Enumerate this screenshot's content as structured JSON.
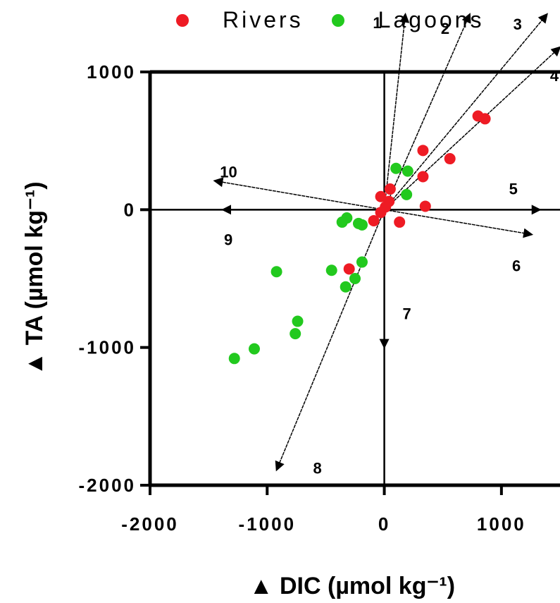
{
  "chart_data": {
    "type": "scatter",
    "xlabel": "DIC (µmol kg⁻¹)",
    "ylabel": "TA (µmol kg⁻¹)",
    "xlim": [
      -2000,
      1500
    ],
    "ylim": [
      -2000,
      1000
    ],
    "x_ticks": [
      "-2000",
      "-1000",
      "0",
      "1000"
    ],
    "y_ticks": [
      "1000",
      "0",
      "-1000",
      "-2000"
    ],
    "colors": {
      "Rivers": "#ee1b24",
      "Lagoons": "#22c91e"
    },
    "series": [
      {
        "name": "Rivers",
        "color": "#ee1b24",
        "points": [
          {
            "x": 800,
            "y": 680
          },
          {
            "x": 860,
            "y": 660
          },
          {
            "x": 330,
            "y": 430
          },
          {
            "x": 560,
            "y": 370
          },
          {
            "x": 330,
            "y": 240
          },
          {
            "x": 350,
            "y": 25
          },
          {
            "x": 50,
            "y": 150
          },
          {
            "x": -30,
            "y": 95
          },
          {
            "x": 40,
            "y": 60
          },
          {
            "x": 10,
            "y": 20
          },
          {
            "x": -30,
            "y": -20
          },
          {
            "x": -90,
            "y": -80
          },
          {
            "x": 130,
            "y": -90
          },
          {
            "x": -300,
            "y": -430
          }
        ]
      },
      {
        "name": "Lagoons",
        "color": "#22c91e",
        "points": [
          {
            "x": 100,
            "y": 300
          },
          {
            "x": 200,
            "y": 280
          },
          {
            "x": 190,
            "y": 110
          },
          {
            "x": -320,
            "y": -60
          },
          {
            "x": -360,
            "y": -90
          },
          {
            "x": -220,
            "y": -100
          },
          {
            "x": -190,
            "y": -110
          },
          {
            "x": -190,
            "y": -380
          },
          {
            "x": -450,
            "y": -440
          },
          {
            "x": -920,
            "y": -450
          },
          {
            "x": -250,
            "y": -500
          },
          {
            "x": -330,
            "y": -560
          },
          {
            "x": -740,
            "y": -810
          },
          {
            "x": -760,
            "y": -900
          },
          {
            "x": -1110,
            "y": -1010
          },
          {
            "x": -1280,
            "y": -1080
          }
        ]
      }
    ],
    "process_vectors": [
      {
        "label": "1",
        "x": 180,
        "y": 1420
      },
      {
        "label": "2",
        "x": 730,
        "y": 1420
      },
      {
        "label": "3",
        "x": 1390,
        "y": 1420
      },
      {
        "label": "4",
        "x": 1500,
        "y": 1180
      },
      {
        "label": "5",
        "x": 1330,
        "y": 0
      },
      {
        "label": "6",
        "x": 1260,
        "y": -180
      },
      {
        "label": "7",
        "x": 0,
        "y": -1000
      },
      {
        "label": "8",
        "x": -920,
        "y": -1890
      },
      {
        "label": "9",
        "x": -1380,
        "y": 0
      },
      {
        "label": "10",
        "x": -1450,
        "y": 210
      }
    ]
  }
}
